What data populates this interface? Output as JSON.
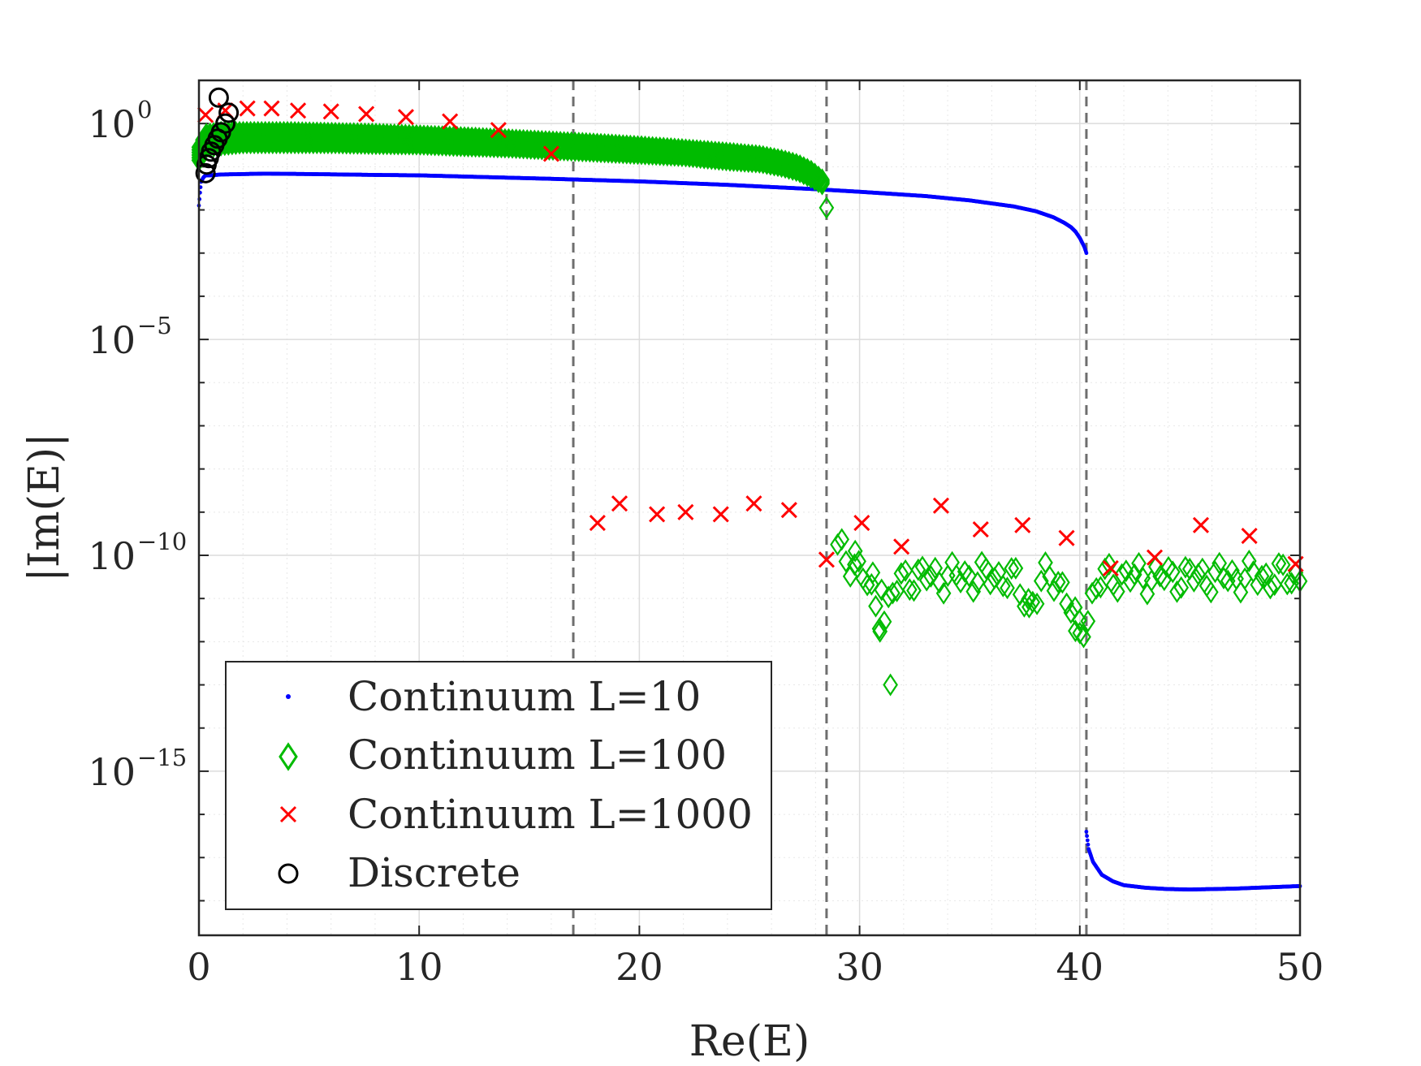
{
  "chart_data": {
    "type": "scatter",
    "xlabel": "Re(E)",
    "ylabel": "|Im(E)|",
    "xlim": [
      0,
      50
    ],
    "ylim_log10": [
      -18.8,
      1
    ],
    "yscale": "log",
    "grid": true,
    "minor_grid": true,
    "legend_position": "bottom-left",
    "x_ticks": [
      {
        "value": 0,
        "label": "0"
      },
      {
        "value": 10,
        "label": "10"
      },
      {
        "value": 20,
        "label": "20"
      },
      {
        "value": 30,
        "label": "30"
      },
      {
        "value": 40,
        "label": "40"
      },
      {
        "value": 50,
        "label": "50"
      }
    ],
    "y_ticks": [
      {
        "exp": 0,
        "base": "10",
        "sup": "0"
      },
      {
        "exp": -5,
        "base": "10",
        "sup": "−5"
      },
      {
        "exp": -10,
        "base": "10",
        "sup": "−10"
      },
      {
        "exp": -15,
        "base": "10",
        "sup": "−15"
      }
    ],
    "reference_lines_x": [
      17,
      28.5,
      40.3
    ],
    "series": [
      {
        "name": "Continuum L=10",
        "marker": "dot",
        "color": "#0000ff",
        "curves": [
          {
            "x": [
              0.0,
              0.05,
              0.1,
              0.2,
              0.3,
              0.5,
              1,
              2,
              3,
              5,
              8,
              10,
              13,
              16,
              20,
              24,
              28,
              30,
              33,
              35,
              37,
              38,
              38.8,
              39.3,
              39.6,
              39.8,
              40.0,
              40.1,
              40.2,
              40.3
            ],
            "log10y": [
              -1.9,
              -1.6,
              -1.35,
              -1.25,
              -1.2,
              -1.2,
              -1.18,
              -1.17,
              -1.16,
              -1.17,
              -1.19,
              -1.2,
              -1.24,
              -1.28,
              -1.34,
              -1.42,
              -1.52,
              -1.58,
              -1.68,
              -1.78,
              -1.92,
              -2.03,
              -2.17,
              -2.3,
              -2.4,
              -2.5,
              -2.65,
              -2.75,
              -2.85,
              -3.0
            ]
          },
          {
            "x": [
              40.3,
              40.4,
              40.6,
              41,
              41.5,
              42,
              43,
              44,
              45,
              46,
              47,
              48,
              49,
              50
            ],
            "log10y": [
              -16.4,
              -16.8,
              -17.1,
              -17.4,
              -17.55,
              -17.64,
              -17.7,
              -17.73,
              -17.74,
              -17.73,
              -17.72,
              -17.7,
              -17.68,
              -17.66
            ]
          }
        ]
      },
      {
        "name": "Continuum L=100",
        "marker": "diamond",
        "color": "#00bb00",
        "lo": {
          "x": [
            0,
            0.3,
            1,
            2,
            4,
            6,
            8,
            10,
            12,
            14,
            16,
            18,
            20,
            22,
            24,
            25.5,
            26.5,
            27.2,
            27.8,
            28.3
          ],
          "log10y": [
            -0.85,
            -0.55,
            -0.5,
            -0.45,
            -0.45,
            -0.45,
            -0.47,
            -0.48,
            -0.52,
            -0.55,
            -0.6,
            -0.65,
            -0.7,
            -0.75,
            -0.85,
            -0.9,
            -1.0,
            -1.1,
            -1.25,
            -1.4
          ]
        },
        "hi": {
          "x": [
            0,
            0.3,
            1,
            2,
            4,
            6,
            8,
            10,
            12,
            14,
            16,
            18,
            20,
            22,
            24,
            25.5,
            26.5,
            27.2,
            27.8,
            28.3
          ],
          "log10y": [
            -0.55,
            -0.25,
            -0.2,
            -0.2,
            -0.2,
            -0.22,
            -0.24,
            -0.28,
            -0.32,
            -0.37,
            -0.42,
            -0.47,
            -0.53,
            -0.6,
            -0.68,
            -0.75,
            -0.85,
            -0.95,
            -1.1,
            -1.3
          ]
        },
        "upper_count": 170,
        "extra_points": [
          {
            "x": 28.5,
            "log10y": -1.95
          },
          {
            "x": 29.8,
            "log10y": -9.9
          },
          {
            "x": 30.6,
            "log10y": -10.4
          },
          {
            "x": 31.0,
            "log10y": -10.8
          },
          {
            "x": 30.9,
            "log10y": -11.7
          },
          {
            "x": 31.4,
            "log10y": -13.0
          },
          {
            "x": 37.7,
            "log10y": -11.2
          },
          {
            "x": 39.8,
            "log10y": -11.75
          },
          {
            "x": 40.0,
            "log10y": -11.8
          }
        ],
        "lower_range": [
          29,
          50
        ],
        "lower_count": 110,
        "lower_base_log10y": -10.5,
        "lower_dips": [
          {
            "x": 31.0,
            "depth": 0.9,
            "width": 0.6
          },
          {
            "x": 37.7,
            "depth": 0.6,
            "width": 0.5
          },
          {
            "x": 40.0,
            "depth": 1.2,
            "width": 0.6
          }
        ]
      },
      {
        "name": "Continuum L=1000",
        "marker": "x",
        "color": "#ff0000",
        "x": [
          0.3,
          1.2,
          2.2,
          3.3,
          4.5,
          6.0,
          7.6,
          9.4,
          11.4,
          13.6,
          16.0,
          18.1,
          19.1,
          20.8,
          22.1,
          23.7,
          25.2,
          26.8,
          28.5,
          30.1,
          31.9,
          33.7,
          35.5,
          37.4,
          39.4,
          41.4,
          43.4,
          45.5,
          47.7,
          49.8
        ],
        "log10y": [
          0.2,
          0.3,
          0.35,
          0.35,
          0.3,
          0.28,
          0.22,
          0.15,
          0.05,
          -0.15,
          -0.7,
          -9.25,
          -8.8,
          -9.05,
          -9.0,
          -9.05,
          -8.8,
          -8.95,
          -10.1,
          -9.25,
          -9.8,
          -8.85,
          -9.4,
          -9.3,
          -9.6,
          -10.3,
          -10.05,
          -9.3,
          -9.55,
          -10.2
        ]
      },
      {
        "name": "Discrete",
        "marker": "circle",
        "color": "#000000",
        "x": [
          0.3,
          0.35,
          0.45,
          0.55,
          0.7,
          0.85,
          1.0,
          1.2,
          1.35,
          0.9
        ],
        "log10y": [
          -1.15,
          -0.95,
          -0.8,
          -0.65,
          -0.5,
          -0.35,
          -0.2,
          0.0,
          0.25,
          0.6
        ]
      }
    ]
  }
}
